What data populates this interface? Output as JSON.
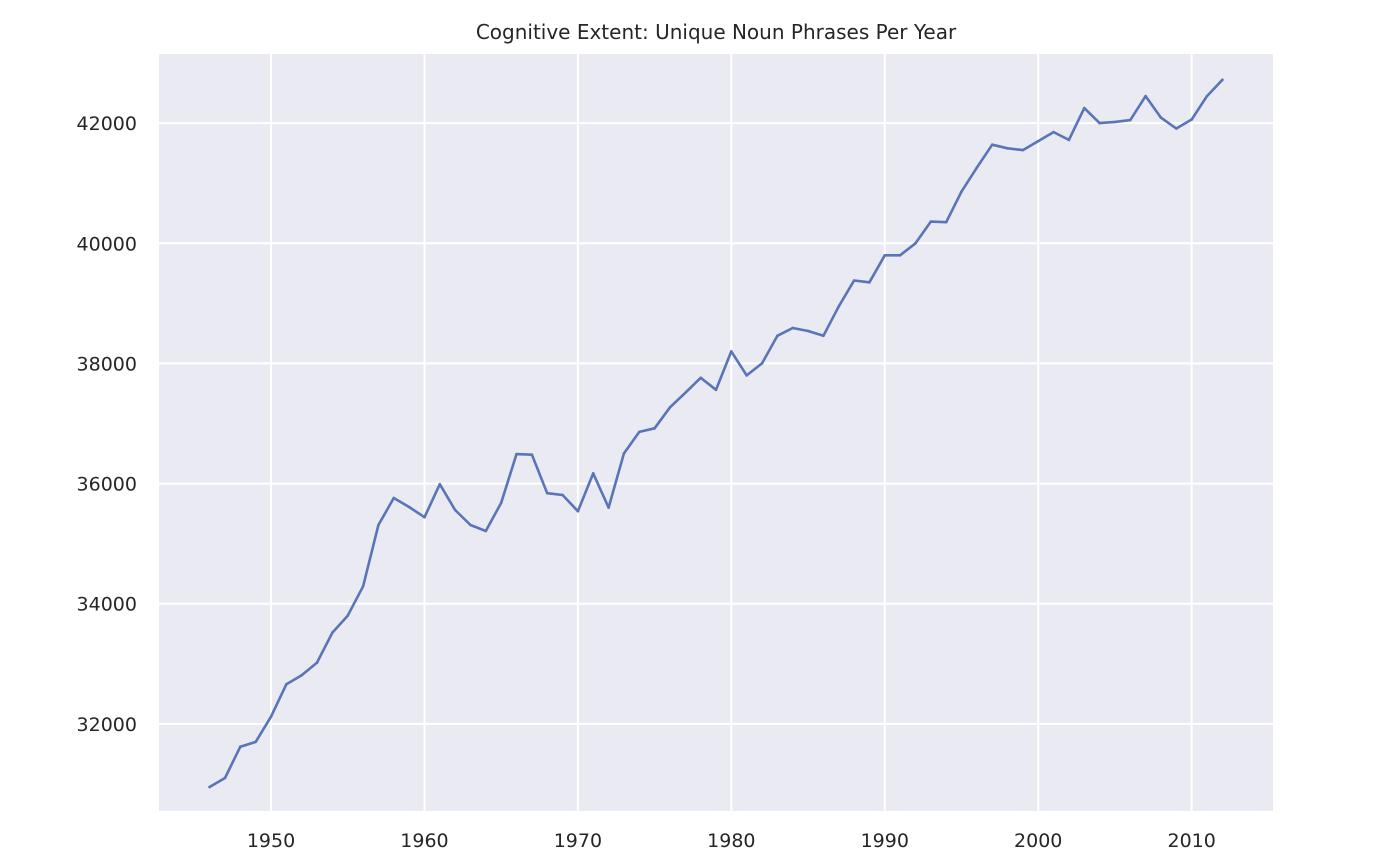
{
  "chart_data": {
    "type": "line",
    "title": "Cognitive Extent: Unique Noun Phrases Per Year",
    "xlabel": "",
    "ylabel": "",
    "xlim": [
      1942.7,
      2015.3
    ],
    "ylim": [
      30550,
      43150
    ],
    "x_ticks": [
      1950,
      1960,
      1970,
      1980,
      1990,
      2000,
      2010
    ],
    "y_ticks": [
      32000,
      34000,
      36000,
      38000,
      40000,
      42000
    ],
    "grid": true,
    "legend": "none",
    "colors": {
      "plot_background": "#eaeaf2",
      "grid": "#ffffff",
      "line": "#5975b8"
    },
    "series": [
      {
        "x": [
          1946,
          1947,
          1948,
          1949,
          1950,
          1951,
          1952,
          1953,
          1954,
          1955,
          1956,
          1957,
          1958,
          1959,
          1960,
          1961,
          1962,
          1963,
          1964,
          1965,
          1966,
          1967,
          1968,
          1969,
          1970,
          1971,
          1972,
          1973,
          1974,
          1975,
          1976,
          1977,
          1978,
          1979,
          1980,
          1981,
          1982,
          1983,
          1984,
          1985,
          1986,
          1987,
          1988,
          1989,
          1990,
          1991,
          1992,
          1993,
          1994,
          1995,
          1996,
          1997,
          1998,
          1999,
          2000,
          2001,
          2002,
          2003,
          2004,
          2005,
          2006,
          2007,
          2008,
          2009,
          2010,
          2011,
          2012
        ],
        "y": [
          30950,
          31100,
          31620,
          31700,
          32120,
          32660,
          32810,
          33020,
          33520,
          33800,
          34290,
          35310,
          35760,
          35610,
          35440,
          35990,
          35560,
          35310,
          35210,
          35680,
          36490,
          36480,
          35840,
          35810,
          35540,
          36170,
          35600,
          36500,
          36860,
          36920,
          37270,
          37510,
          37760,
          37560,
          38200,
          37800,
          38000,
          38460,
          38590,
          38540,
          38460,
          38950,
          39380,
          39350,
          39800,
          39800,
          40000,
          40360,
          40350,
          40860,
          41260,
          41640,
          41580,
          41550,
          41700,
          41850,
          41720,
          42250,
          42000,
          42020,
          42050,
          42450,
          42090,
          41910,
          42060,
          42450,
          42720
        ]
      }
    ]
  }
}
